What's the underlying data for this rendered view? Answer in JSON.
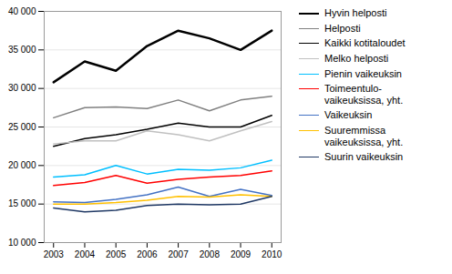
{
  "chart_data": {
    "type": "line",
    "x": [
      2003,
      2004,
      2005,
      2006,
      2007,
      2008,
      2009,
      2010
    ],
    "series": [
      {
        "name": "Hyvin helposti",
        "color": "#000000",
        "values": [
          30800,
          33500,
          32300,
          35500,
          37500,
          36500,
          35000,
          37500
        ]
      },
      {
        "name": "Helposti",
        "color": "#808080",
        "values": [
          26200,
          27500,
          27600,
          27400,
          28500,
          27100,
          28500,
          29000
        ]
      },
      {
        "name": "Kaikki kotitaloudet",
        "color": "#000000",
        "values": [
          22500,
          23500,
          24000,
          24700,
          25500,
          25000,
          25000,
          26500
        ]
      },
      {
        "name": "Melko helposti",
        "color": "#c0c0c0",
        "values": [
          22800,
          23200,
          23200,
          24500,
          24000,
          23200,
          24500,
          25700
        ]
      },
      {
        "name": "Pienin vaikeuksin",
        "color": "#00bfff",
        "values": [
          18500,
          18800,
          20000,
          18900,
          19500,
          19400,
          19700,
          20700
        ]
      },
      {
        "name": "Toimeentulo-\nvaikeuksissa, yht.",
        "color": "#ff0000",
        "values": [
          17400,
          17800,
          18700,
          17700,
          18200,
          18500,
          18700,
          19300
        ]
      },
      {
        "name": "Vaikeuksin",
        "color": "#4472c4",
        "values": [
          15300,
          15200,
          15600,
          16200,
          17200,
          16000,
          16900,
          16100
        ]
      },
      {
        "name": "Suuremmissa\nvaikeuksissa, yht.",
        "color": "#ffc000",
        "values": [
          15000,
          15000,
          15200,
          15500,
          16000,
          15900,
          16200,
          16000
        ]
      },
      {
        "name": "Suurin vaikeuksin",
        "color": "#1f3864",
        "values": [
          14500,
          14000,
          14200,
          14800,
          15000,
          14900,
          15000,
          16000
        ]
      }
    ],
    "xlim": [
      2002.7,
      2010.3
    ],
    "xticks": [
      2003,
      2004,
      2005,
      2006,
      2007,
      2008,
      2009,
      2010
    ],
    "ylim": [
      10000,
      40000
    ],
    "yticks": [
      {
        "value": 10000,
        "label": "10 000"
      },
      {
        "value": 15000,
        "label": "15 000"
      },
      {
        "value": 20000,
        "label": "20 000"
      },
      {
        "value": 25000,
        "label": "25 000"
      },
      {
        "value": 30000,
        "label": "30 000"
      },
      {
        "value": 35000,
        "label": "35 000"
      },
      {
        "value": 40000,
        "label": "40 000"
      }
    ],
    "grid": true,
    "legend": "right"
  }
}
